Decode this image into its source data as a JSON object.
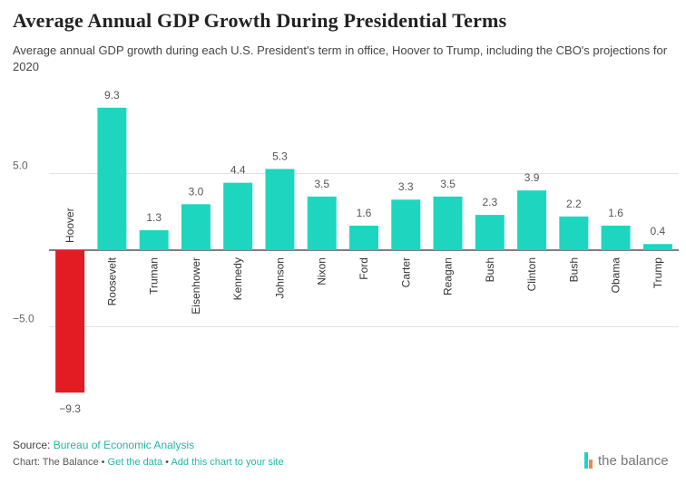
{
  "title": "Average Annual GDP Growth During Presidential Terms",
  "subtitle": "Average annual GDP growth during each U.S. President's term in office, Hoover to Trump, including the CBO's projections for 2020",
  "colors": {
    "positive": "#1ed6bf",
    "negative": "#e31c23",
    "link": "#1fb9a3"
  },
  "chart_data": {
    "type": "bar",
    "categories": [
      "Hoover",
      "Roosevelt",
      "Truman",
      "Eisenhower",
      "Kennedy",
      "Johnson",
      "Nixon",
      "Ford",
      "Carter",
      "Reagan",
      "Bush",
      "Clinton",
      "Bush",
      "Obama",
      "Trump"
    ],
    "values": [
      -9.3,
      9.3,
      1.3,
      3.0,
      4.4,
      5.3,
      3.5,
      1.6,
      3.3,
      3.5,
      2.3,
      3.9,
      2.2,
      1.6,
      0.4
    ],
    "value_labels": [
      "−9.3",
      "9.3",
      "1.3",
      "3.0",
      "4.4",
      "5.3",
      "3.5",
      "1.6",
      "3.3",
      "3.5",
      "2.3",
      "3.9",
      "2.2",
      "1.6",
      "0.4"
    ],
    "yticks": [
      5.0,
      -5.0
    ],
    "ytick_labels": [
      "5.0",
      "−5.0"
    ],
    "ylim": [
      -10,
      10
    ],
    "grid": true,
    "xlabel": "",
    "ylabel": ""
  },
  "footer": {
    "source_prefix": "Source: ",
    "source_link": "Bureau of Economic Analysis",
    "credit_prefix": "Chart: The Balance • ",
    "get_data": "Get the data",
    "separator": " • ",
    "add_chart": "Add this chart to your site"
  },
  "brand": {
    "name": "the balance",
    "icon": "balance-logo-icon"
  }
}
